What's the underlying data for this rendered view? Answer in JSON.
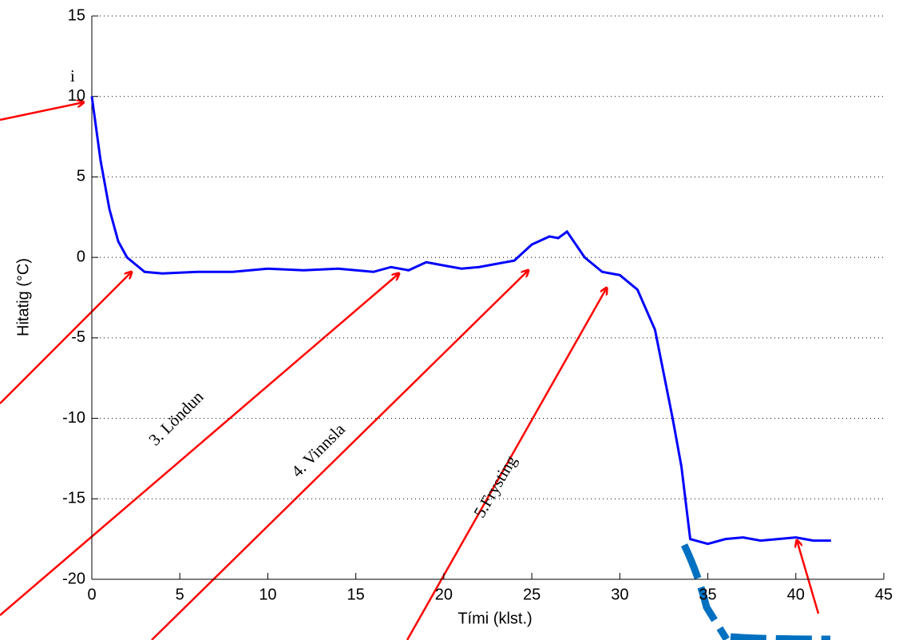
{
  "chart_data": {
    "type": "line",
    "xlabel": "Tími (klst.)",
    "ylabel": "Hitatig (°C)",
    "annotations": [
      "i",
      "3. Löndun",
      "4. Vinnsla",
      "5.Frysting"
    ],
    "xlim": [
      0,
      45
    ],
    "ylim": [
      -20,
      15
    ],
    "xticks": [
      0,
      5,
      10,
      15,
      20,
      25,
      30,
      35,
      40,
      45
    ],
    "yticks": [
      -20,
      -15,
      -10,
      -5,
      0,
      5,
      10,
      15
    ],
    "grid": true,
    "x": [
      0,
      0.5,
      1,
      1.5,
      2,
      3,
      4,
      6,
      8,
      10,
      12,
      14,
      16,
      17,
      18,
      19,
      20,
      21,
      22,
      24,
      25,
      26,
      26.5,
      27,
      28,
      29,
      30,
      31,
      32,
      33,
      33.5,
      34,
      35,
      36,
      37,
      38,
      39,
      40,
      41,
      42
    ],
    "series": [
      {
        "color": "#0000ff",
        "values": [
          10,
          6,
          3,
          1,
          0,
          -0.9,
          -1,
          -0.9,
          -0.9,
          -0.7,
          -0.8,
          -0.7,
          -0.9,
          -0.6,
          -0.8,
          -0.3,
          -0.5,
          -0.7,
          -0.6,
          -0.2,
          0.8,
          1.3,
          1.2,
          1.6,
          0,
          -0.9,
          -1.1,
          -2,
          -4.5,
          -10,
          -13,
          -17.5,
          -17.8,
          -17.5,
          -17.4,
          -17.6,
          -17.5,
          -17.4,
          -17.6,
          -17.6
        ]
      }
    ]
  }
}
